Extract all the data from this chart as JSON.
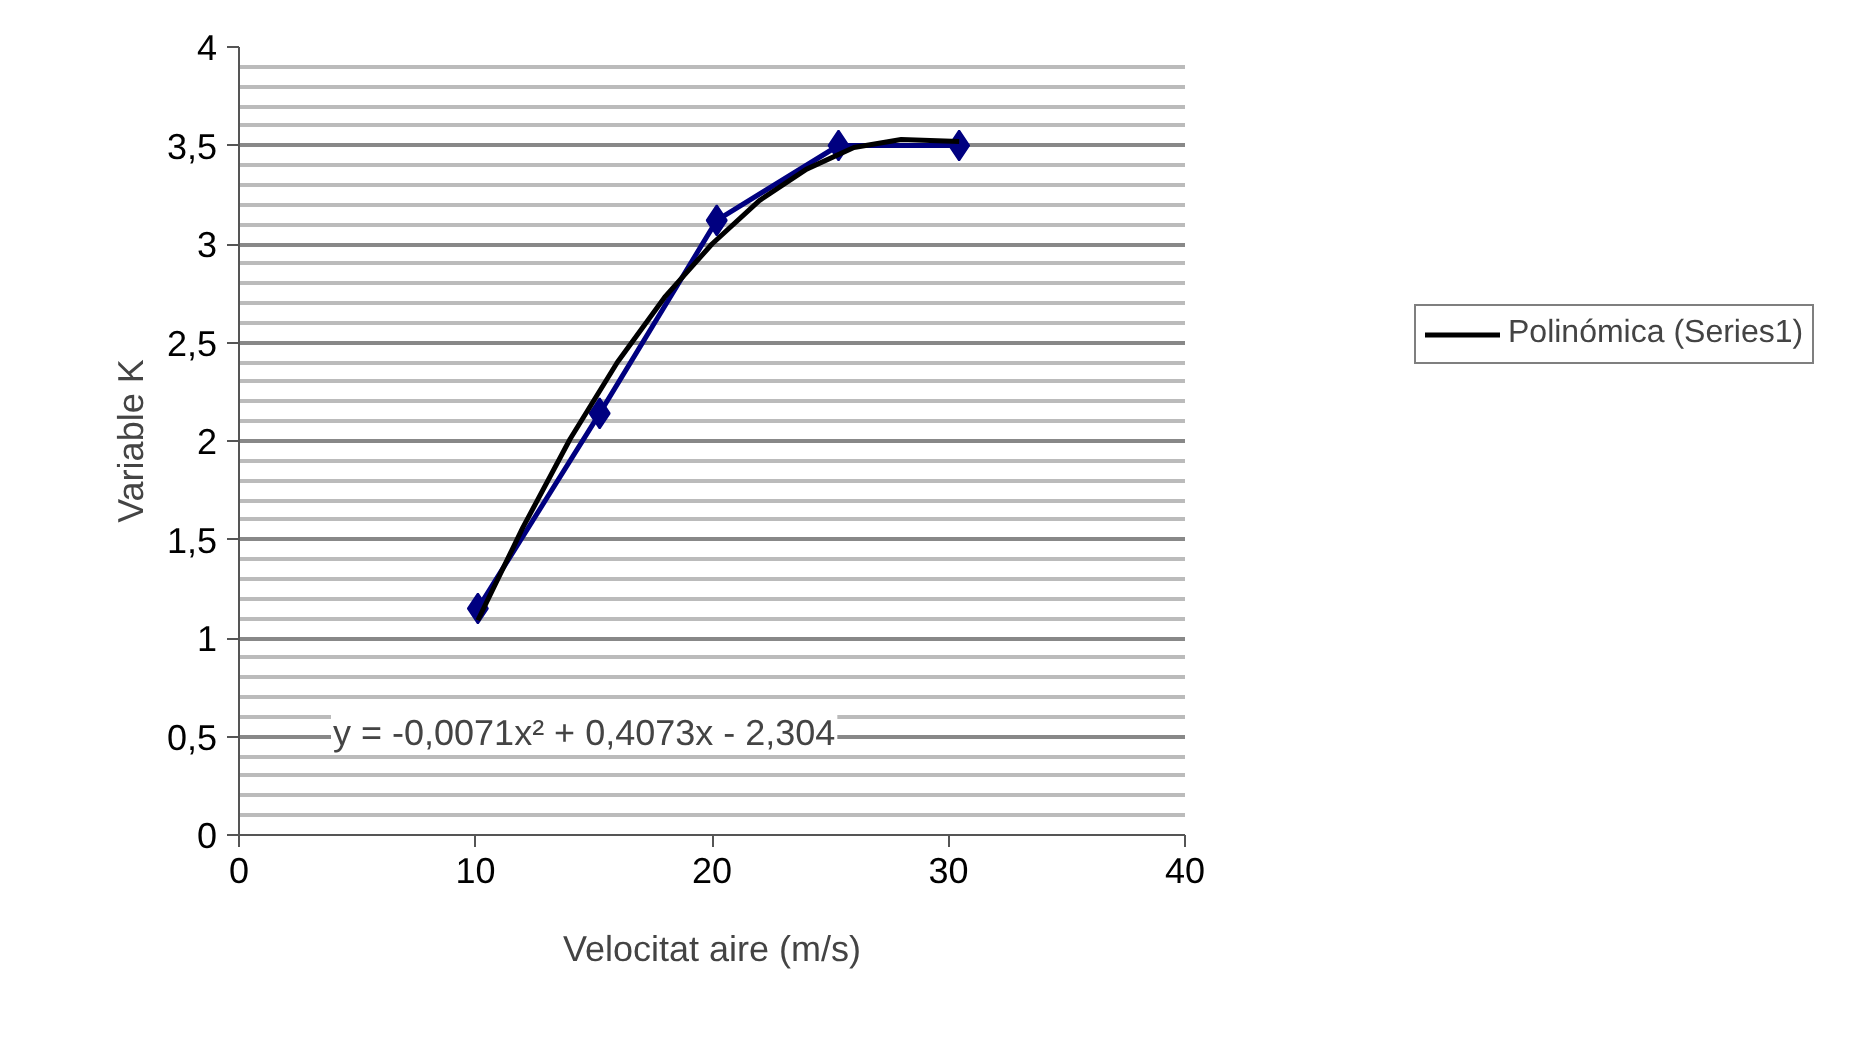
{
  "chart_data": {
    "type": "line",
    "xlabel": "Velocitat aire (m/s)",
    "ylabel": "Variable K",
    "xlim": [
      0,
      40
    ],
    "xticks": [
      0,
      10,
      20,
      30,
      40
    ],
    "ylim": [
      0,
      4
    ],
    "yticks": [
      0,
      {
        "value": 0.5,
        "label": "0,5"
      },
      1,
      {
        "value": 1.5,
        "label": "1,5"
      },
      2,
      {
        "value": 2.5,
        "label": "2,5"
      },
      3,
      {
        "value": 3.5,
        "label": "3,5"
      },
      4
    ],
    "grid": "y",
    "legend": "right",
    "marker": "diamond",
    "series": [
      {
        "color": "#000080",
        "x": [
          10.1,
          15.25,
          20.2,
          25.35,
          30.45
        ],
        "values": [
          1.15,
          2.14,
          3.12,
          3.5,
          3.5
        ]
      },
      {
        "type": "line",
        "name": "Polinómica (Series1)",
        "color": "#000000",
        "marker": "none",
        "x": [
          10.1,
          12,
          14,
          16,
          18,
          20,
          22,
          24,
          26,
          28,
          30.45
        ],
        "values": [
          1.09,
          1.56,
          2.01,
          2.4,
          2.73,
          3.0,
          3.22,
          3.38,
          3.49,
          3.53,
          3.52
        ]
      }
    ],
    "annotations": [
      "y = -0,0071x² + 0,4073x - 2,304"
    ]
  }
}
